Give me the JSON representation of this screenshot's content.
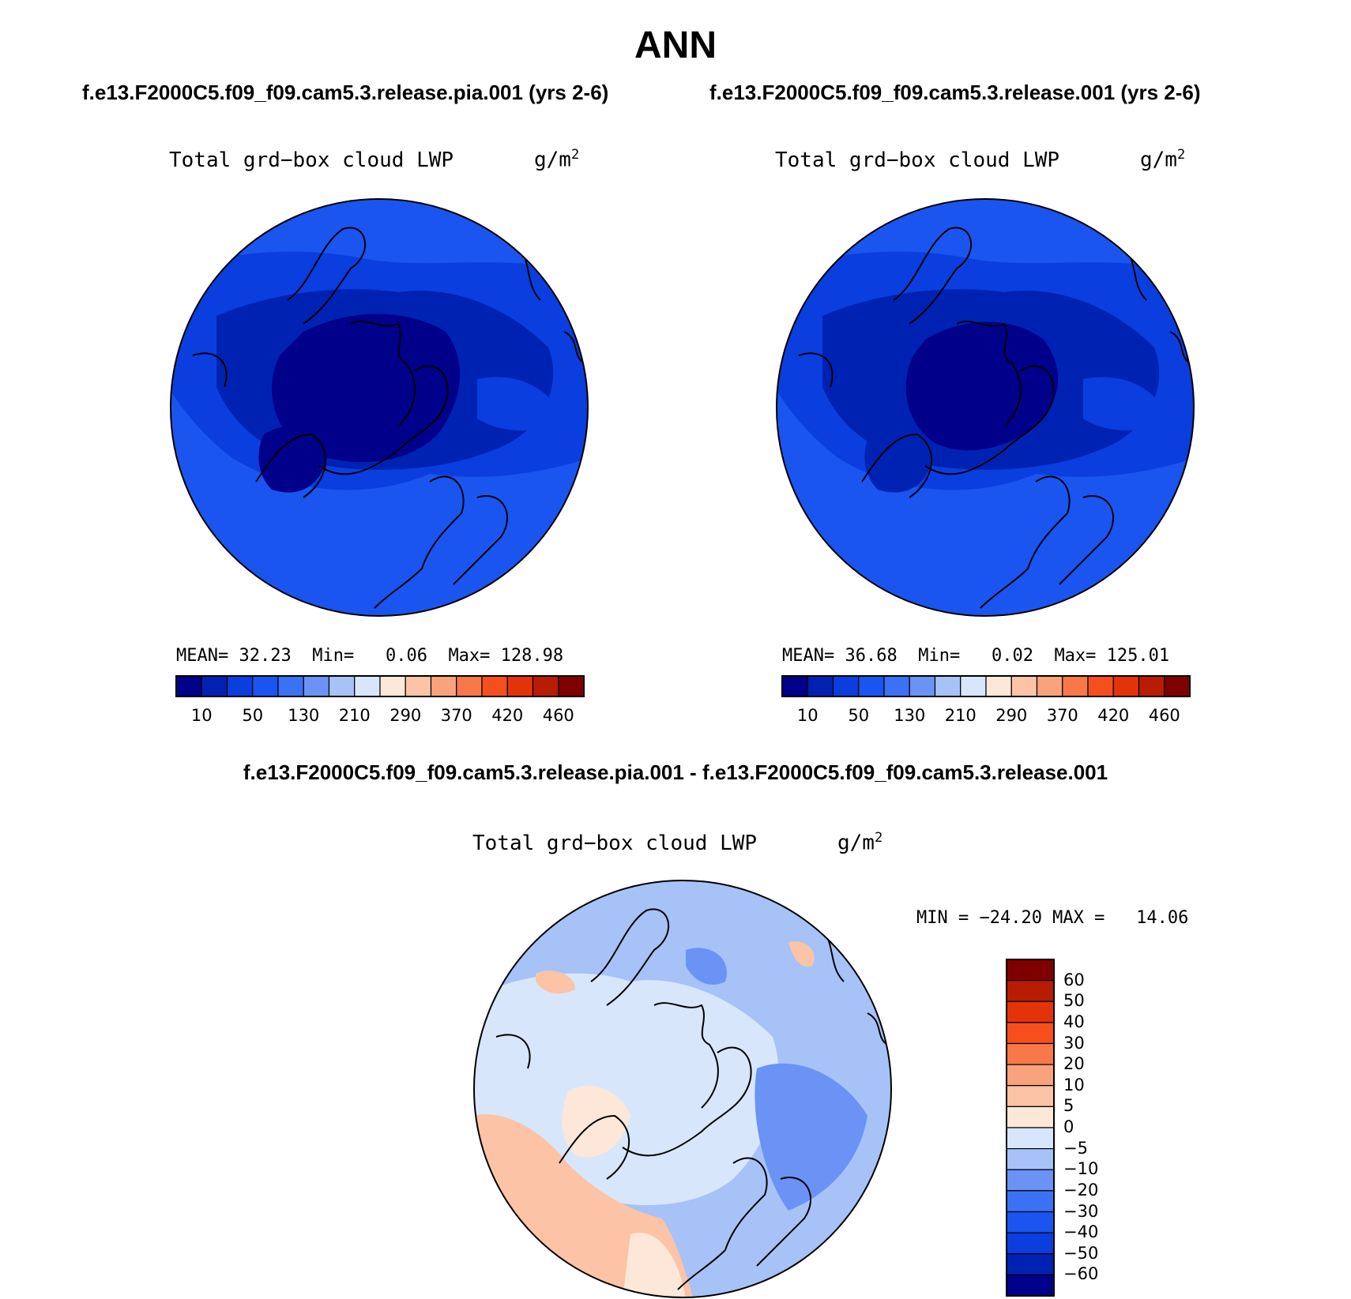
{
  "header": {
    "season": "ANN",
    "case_left": "f.e13.F2000C5.f09_f09.cam5.3.release.pia.001 (yrs 2-6)",
    "case_right": "f.e13.F2000C5.f09_f09.cam5.3.release.001 (yrs 2-6)",
    "diff_title": "f.e13.F2000C5.f09_f09.cam5.3.release.pia.001 - f.e13.F2000C5.f09_f09.cam5.3.release.001"
  },
  "panels": {
    "left": {
      "variable": "Total grd−box cloud LWP",
      "units_base": "g/m",
      "units_exp": "2",
      "mean_label": "MEAN=",
      "mean": "32.23",
      "min_label": "Min=",
      "min": "0.06",
      "max_label": "Max=",
      "max": "128.98"
    },
    "right": {
      "variable": "Total grd−box cloud LWP",
      "units_base": "g/m",
      "units_exp": "2",
      "mean_label": "MEAN=",
      "mean": "36.68",
      "min_label": "Min=",
      "min": "0.02",
      "max_label": "Max=",
      "max": "125.01"
    },
    "diff": {
      "variable": "Total grd−box cloud LWP",
      "units_base": "g/m",
      "units_exp": "2",
      "minmax": "MIN = −24.20 MAX =   14.06"
    }
  },
  "colorbars": {
    "main": {
      "colors": [
        "#00008a",
        "#0022b2",
        "#0a3ede",
        "#1a55f0",
        "#3b72f5",
        "#6a93f5",
        "#a6c2f7",
        "#d8e6fb",
        "#fde7d8",
        "#fcc3a6",
        "#f9a37c",
        "#f8784a",
        "#f64f1e",
        "#e33409",
        "#b81d03",
        "#800000"
      ],
      "tick_labels": [
        "10",
        "50",
        "130",
        "210",
        "290",
        "370",
        "420",
        "460"
      ]
    },
    "diff": {
      "colors": [
        "#00008a",
        "#0022b2",
        "#0a3ede",
        "#1a55f0",
        "#3b72f5",
        "#6a93f5",
        "#a6c2f7",
        "#d8e6fb",
        "#fde7d8",
        "#fcc3a6",
        "#f9a37c",
        "#f8784a",
        "#f64f1e",
        "#e33409",
        "#b81d03",
        "#800000"
      ],
      "tick_labels": [
        "60",
        "50",
        "40",
        "30",
        "20",
        "10",
        "5",
        "0",
        "−5",
        "−10",
        "−20",
        "−30",
        "−40",
        "−50",
        "−60"
      ]
    }
  }
}
